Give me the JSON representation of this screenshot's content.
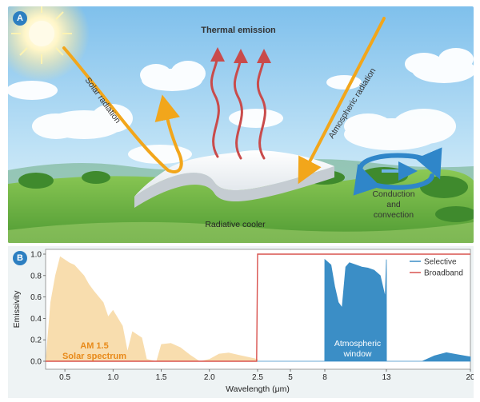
{
  "panel_a": {
    "badge": "A",
    "labels": {
      "thermal_emission": "Thermal emission",
      "solar_radiation": "Solar radiation",
      "atmospheric_radiation": "Atmospheric radiation",
      "conduction_line1": "Conduction",
      "conduction_line2": "and",
      "conduction_line3": "convection",
      "radiative_cooler": "Radiative cooler"
    },
    "colors": {
      "sky_top": "#8cc6ec",
      "grass": "#6fb847",
      "thermal_arrows": "#c94b4b",
      "solar_arrow": "#f2a61b",
      "convection_arrows": "#2f86c9"
    }
  },
  "panel_b": {
    "badge": "B",
    "annotations": {
      "am15_line1": "AM 1.5",
      "am15_line2": "Solar spectrum",
      "window_line1": "Atmospheric",
      "window_line2": "window"
    },
    "chart_data": {
      "type": "line",
      "xlabel": "Wavelength (μm)",
      "ylabel": "Emissivity",
      "ylim": [
        0.0,
        1.0
      ],
      "x_ticks": [
        "0.5",
        "1.0",
        "1.5",
        "2.0",
        "2.5",
        "5",
        "8",
        "13",
        "20"
      ],
      "y_ticks": [
        "0.0",
        "0.2",
        "0.4",
        "0.6",
        "0.8",
        "1.0"
      ],
      "x_axis_note": "piecewise axis: linear 0.3–2.5 μm, then 2.5–20 μm compressed segment",
      "legend_position": "top-right",
      "series": [
        {
          "name": "Selective",
          "color": "#3b8ec6",
          "x": [
            0.3,
            2.5,
            7.99,
            8.0,
            8.5,
            8.8,
            9.1,
            9.4,
            9.7,
            10.0,
            10.5,
            11.0,
            11.5,
            12.0,
            12.5,
            12.9,
            13.0,
            13.01,
            16.0,
            17.0,
            18.0,
            19.0,
            20.0
          ],
          "y": [
            0.0,
            0.0,
            0.0,
            0.95,
            0.9,
            0.7,
            0.55,
            0.5,
            0.88,
            0.92,
            0.9,
            0.88,
            0.87,
            0.85,
            0.8,
            0.6,
            0.95,
            0.0,
            0.0,
            0.05,
            0.08,
            0.06,
            0.04
          ]
        },
        {
          "name": "Broadband",
          "color": "#d9534f",
          "x": [
            0.3,
            2.49,
            2.5,
            20.0
          ],
          "y": [
            0.0,
            0.0,
            1.0,
            1.0
          ]
        },
        {
          "name": "AM 1.5 Solar spectrum",
          "color": "#f7d7a0",
          "x": [
            0.3,
            0.35,
            0.4,
            0.45,
            0.5,
            0.55,
            0.6,
            0.7,
            0.75,
            0.8,
            0.9,
            0.95,
            1.0,
            1.1,
            1.15,
            1.2,
            1.3,
            1.35,
            1.45,
            1.5,
            1.6,
            1.7,
            1.8,
            1.9,
            2.0,
            2.1,
            2.2,
            2.3,
            2.4,
            2.5
          ],
          "y": [
            0.0,
            0.55,
            0.8,
            0.98,
            0.95,
            0.92,
            0.9,
            0.8,
            0.72,
            0.66,
            0.55,
            0.42,
            0.48,
            0.33,
            0.1,
            0.28,
            0.22,
            0.02,
            0.0,
            0.16,
            0.17,
            0.13,
            0.06,
            0.0,
            0.02,
            0.07,
            0.08,
            0.06,
            0.04,
            0.02
          ]
        }
      ]
    }
  }
}
